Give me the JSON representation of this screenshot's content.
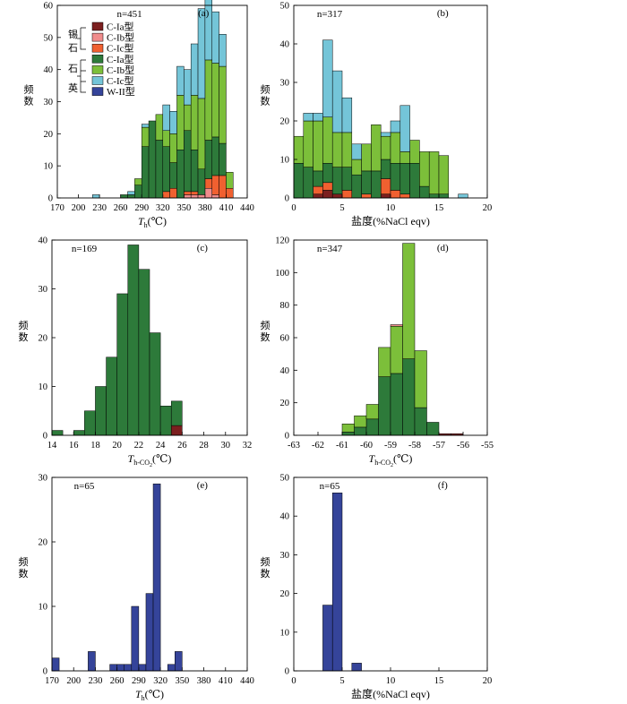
{
  "colors": {
    "sn_a": "#7b1f1f",
    "sn_b": "#f08c8c",
    "sn_c": "#f06030",
    "q_a": "#2d7a3a",
    "q_b": "#7cbf3a",
    "q_c": "#74c5d8",
    "w": "#35449a"
  },
  "legend": {
    "group_cass": "锡石",
    "group_qtz": "石英",
    "entries": [
      {
        "key": "sn_a",
        "label": "C-Ia型"
      },
      {
        "key": "sn_b",
        "label": "C-Ib型"
      },
      {
        "key": "sn_c",
        "label": "C-Ic型"
      },
      {
        "key": "q_a",
        "label": "C-Ia型"
      },
      {
        "key": "q_b",
        "label": "C-Ib型"
      },
      {
        "key": "q_c",
        "label": "C-Ic型"
      },
      {
        "key": "w",
        "label": "W-II型"
      }
    ]
  },
  "chart_data": [
    {
      "id": "a",
      "type": "bar",
      "stacked": true,
      "panel_label": "(a)",
      "n_label": "n=451",
      "ylabel": "频数",
      "xlabel": "T",
      "xlabel_sub": "h",
      "xlabel_suffix": "(℃)",
      "xlim": [
        170,
        440
      ],
      "ylim": [
        0,
        60
      ],
      "xticks": [
        170,
        200,
        230,
        260,
        290,
        320,
        350,
        380,
        410,
        440
      ],
      "yticks": [
        0,
        10,
        20,
        30,
        40,
        50,
        60
      ],
      "bin_width": 10,
      "bin_start": 220,
      "series": [
        {
          "key": "sn_a",
          "values": [
            0,
            0,
            0,
            0,
            0,
            0,
            0,
            0,
            0,
            0,
            0,
            0,
            0,
            0,
            0,
            0,
            0,
            0,
            0,
            0
          ]
        },
        {
          "key": "sn_b",
          "values": [
            0,
            0,
            0,
            0,
            0,
            0,
            0,
            0,
            0,
            0,
            0,
            0,
            0,
            1,
            1,
            1,
            3,
            1,
            0,
            0
          ]
        },
        {
          "key": "sn_c",
          "values": [
            0,
            0,
            0,
            0,
            0,
            0,
            0,
            0,
            0,
            0,
            2,
            3,
            0,
            1,
            1,
            0,
            3,
            6,
            7,
            3
          ]
        },
        {
          "key": "q_a",
          "values": [
            0,
            0,
            0,
            0,
            1,
            1,
            4,
            16,
            24,
            18,
            14,
            8,
            15,
            19,
            13,
            8,
            12,
            12,
            10,
            0
          ]
        },
        {
          "key": "q_b",
          "values": [
            0,
            0,
            0,
            0,
            0,
            0,
            2,
            6,
            0,
            8,
            5,
            9,
            17,
            8,
            17,
            22,
            25,
            23,
            24,
            5
          ]
        },
        {
          "key": "q_c",
          "values": [
            1,
            0,
            0,
            0,
            0,
            1,
            0,
            1,
            0,
            0,
            8,
            7,
            9,
            11,
            16,
            28,
            20,
            16,
            10,
            0
          ]
        },
        {
          "key": "w",
          "values": [
            0,
            0,
            0,
            0,
            0,
            0,
            0,
            0,
            0,
            0,
            0,
            0,
            0,
            0,
            0,
            0,
            0,
            0,
            0,
            0
          ]
        }
      ]
    },
    {
      "id": "b",
      "type": "bar",
      "stacked": true,
      "panel_label": "(b)",
      "n_label": "n=317",
      "ylabel": "频数",
      "xlabel": "盐度(%NaCl eqv)",
      "xlim": [
        0,
        20
      ],
      "ylim": [
        0,
        50
      ],
      "xticks": [
        0,
        5,
        10,
        15,
        20
      ],
      "yticks": [
        0,
        10,
        20,
        30,
        40,
        50
      ],
      "bin_width": 1,
      "bin_start": 0,
      "series": [
        {
          "key": "sn_a",
          "values": [
            0,
            0,
            1,
            2,
            1,
            0,
            0,
            0,
            0,
            1,
            0,
            0,
            0,
            0,
            0,
            0,
            0,
            0
          ]
        },
        {
          "key": "sn_b",
          "values": [
            0,
            0,
            0,
            0,
            0,
            0,
            0,
            0,
            0,
            0,
            0,
            0,
            0,
            0,
            0,
            0,
            0,
            0
          ]
        },
        {
          "key": "sn_c",
          "values": [
            0,
            0,
            2,
            2,
            0,
            2,
            0,
            1,
            0,
            4,
            2,
            1,
            0,
            0,
            0,
            0,
            0,
            0
          ]
        },
        {
          "key": "q_a",
          "values": [
            9,
            8,
            4,
            5,
            7,
            6,
            6,
            6,
            7,
            5,
            7,
            8,
            9,
            3,
            1,
            1,
            0,
            0
          ]
        },
        {
          "key": "q_b",
          "values": [
            7,
            12,
            13,
            12,
            9,
            9,
            4,
            7,
            12,
            6,
            8,
            3,
            6,
            9,
            11,
            10,
            0,
            0
          ]
        },
        {
          "key": "q_c",
          "values": [
            0,
            2,
            2,
            20,
            16,
            9,
            4,
            0,
            0,
            1,
            3,
            12,
            0,
            0,
            0,
            0,
            0,
            1
          ]
        },
        {
          "key": "w",
          "values": [
            0,
            0,
            0,
            0,
            0,
            0,
            0,
            0,
            0,
            0,
            0,
            0,
            0,
            0,
            0,
            0,
            0,
            0
          ]
        }
      ]
    },
    {
      "id": "c",
      "type": "bar",
      "stacked": true,
      "panel_label": "(c)",
      "n_label": "n=169",
      "ylabel": "频数",
      "xlabel": "T",
      "xlabel_sub": "h-CO",
      "xlabel_subsub": "2",
      "xlabel_suffix": "(℃)",
      "xlim": [
        14,
        32
      ],
      "ylim": [
        0,
        40
      ],
      "xticks": [
        14,
        16,
        18,
        20,
        22,
        24,
        26,
        28,
        30,
        32
      ],
      "yticks": [
        0,
        10,
        20,
        30,
        40
      ],
      "bin_width": 1,
      "bin_start": 14,
      "series": [
        {
          "key": "sn_a",
          "values": [
            0,
            0,
            0,
            0,
            0,
            0,
            0,
            0,
            0,
            0,
            0,
            2
          ]
        },
        {
          "key": "q_a",
          "values": [
            1,
            0,
            1,
            5,
            10,
            16,
            29,
            39,
            34,
            21,
            6,
            5
          ]
        }
      ]
    },
    {
      "id": "d",
      "type": "bar",
      "stacked": true,
      "panel_label": "(d)",
      "n_label": "n=347",
      "ylabel": "频数",
      "xlabel": "T",
      "xlabel_sub": "h-CO",
      "xlabel_subsub": "2",
      "xlabel_suffix": "(℃)",
      "xlim": [
        -63,
        -55
      ],
      "ylim": [
        0,
        120
      ],
      "xticks": [
        -63,
        -62,
        -61,
        -60,
        -59,
        -58,
        -57,
        -56,
        -55
      ],
      "yticks": [
        0,
        20,
        40,
        60,
        80,
        100,
        120
      ],
      "bin_width": 0.5,
      "bin_start": -61.5,
      "series": [
        {
          "key": "q_a",
          "values": [
            0,
            2,
            5,
            10,
            36,
            38,
            47,
            17,
            8,
            0,
            0
          ]
        },
        {
          "key": "q_b",
          "values": [
            0,
            5,
            7,
            9,
            18,
            29,
            71,
            35,
            0,
            0,
            0
          ]
        },
        {
          "key": "sn_b",
          "values": [
            0,
            0,
            0,
            0,
            0,
            1,
            0,
            0,
            0,
            0,
            0
          ]
        },
        {
          "key": "sn_a",
          "values": [
            0,
            0,
            0,
            0,
            0,
            0,
            0,
            0,
            0,
            1,
            1
          ]
        }
      ]
    },
    {
      "id": "e",
      "type": "bar",
      "stacked": false,
      "panel_label": "(e)",
      "n_label": "n=65",
      "ylabel": "频数",
      "xlabel": "T",
      "xlabel_sub": "h",
      "xlabel_suffix": "(℃)",
      "xlim": [
        170,
        440
      ],
      "ylim": [
        0,
        30
      ],
      "xticks": [
        170,
        200,
        230,
        260,
        290,
        320,
        350,
        380,
        410,
        440
      ],
      "yticks": [
        0,
        10,
        20,
        30
      ],
      "bin_width": 10,
      "bin_start": 170,
      "series": [
        {
          "key": "w",
          "values": [
            2,
            0,
            0,
            0,
            0,
            3,
            0,
            0,
            1,
            1,
            1,
            10,
            1,
            12,
            29,
            0,
            1,
            3
          ]
        }
      ]
    },
    {
      "id": "f",
      "type": "bar",
      "stacked": false,
      "panel_label": "(f)",
      "n_label": "n=65",
      "ylabel": "频数",
      "xlabel": "盐度(%NaCl eqv)",
      "xlim": [
        0,
        20
      ],
      "ylim": [
        0,
        50
      ],
      "xticks": [
        0,
        5,
        10,
        15,
        20
      ],
      "yticks": [
        0,
        10,
        20,
        30,
        40,
        50
      ],
      "bin_width": 1,
      "bin_start": 3,
      "series": [
        {
          "key": "w",
          "values": [
            17,
            46,
            0,
            2
          ]
        }
      ]
    }
  ]
}
